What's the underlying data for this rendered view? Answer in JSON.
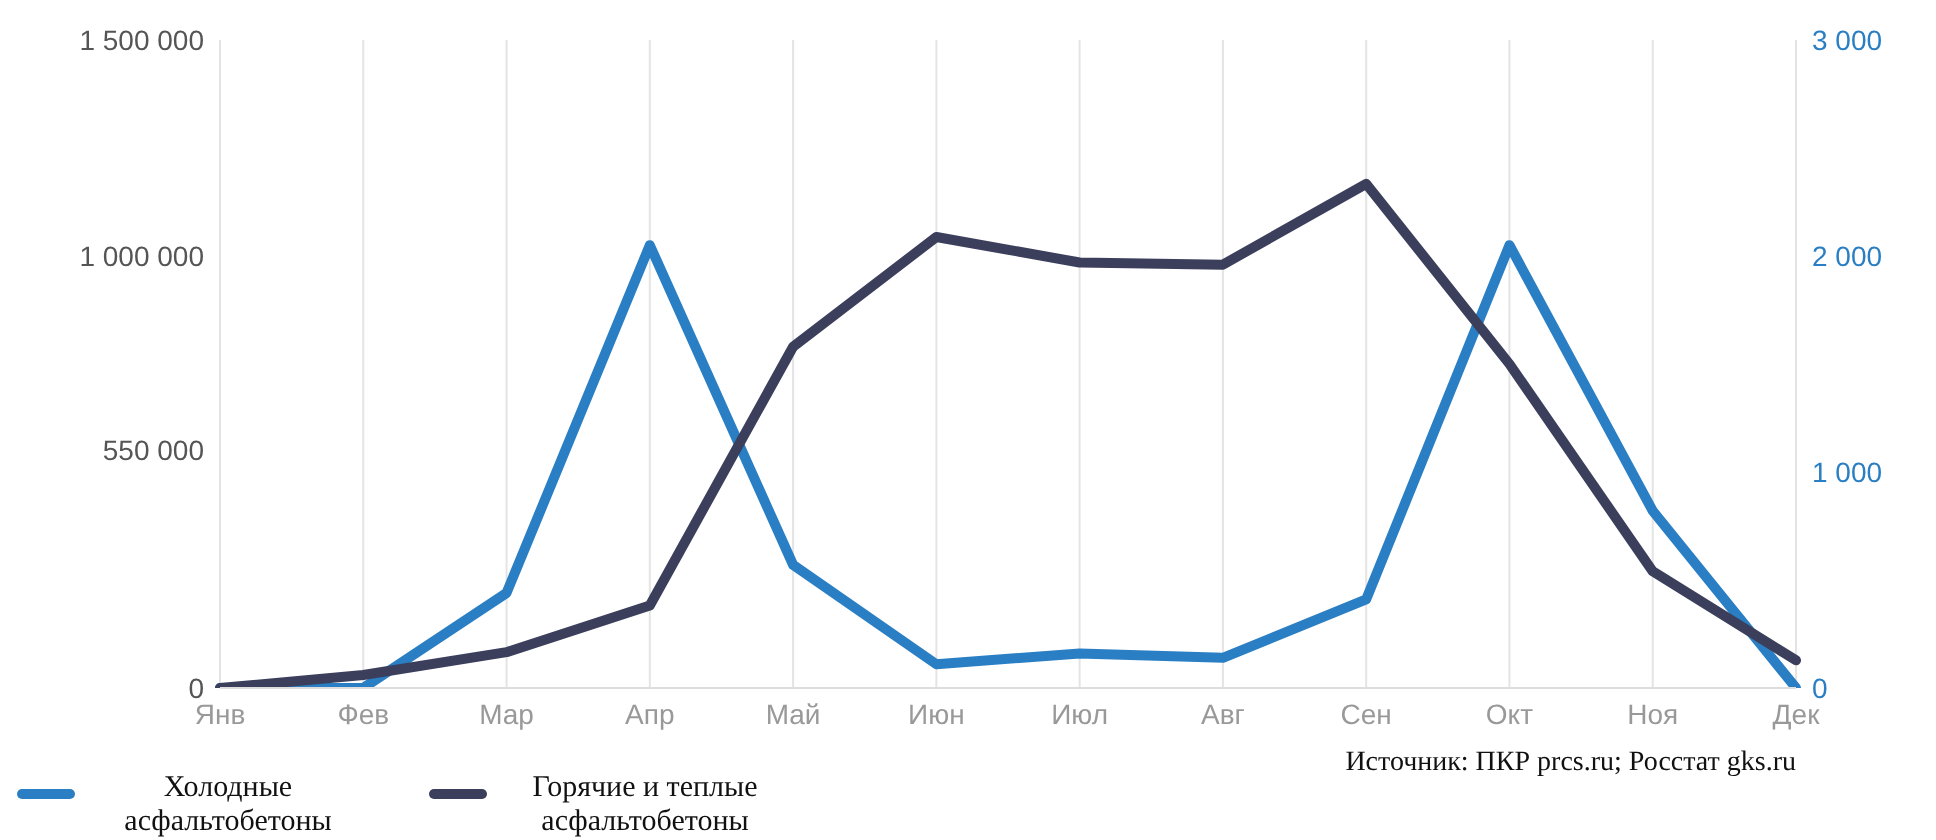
{
  "chart_data": {
    "type": "line",
    "categories": [
      "Янв",
      "Фев",
      "Мар",
      "Апр",
      "Май",
      "Июн",
      "Июл",
      "Авг",
      "Сен",
      "Окт",
      "Ноя",
      "Дек"
    ],
    "series": [
      {
        "name": "Холодные асфальтобетоны",
        "color": "#2a7fc4",
        "axis": "y2",
        "values": [
          0,
          0,
          440,
          2050,
          570,
          110,
          160,
          140,
          410,
          2050,
          820,
          0
        ]
      },
      {
        "name": "Горячие и теплые асфальтобетоны",
        "color": "#3b3f5c",
        "axis": "y",
        "values": [
          0,
          30000,
          83000,
          191000,
          790000,
          1044000,
          985000,
          980000,
          1167000,
          750000,
          270000,
          64000
        ]
      }
    ],
    "ylim": [
      0,
      1500000
    ],
    "yticks": [
      0,
      {
        "value": 550000,
        "label": "550 000"
      },
      {
        "value": 1000000,
        "label": "1 000 000"
      },
      {
        "value": 1500000,
        "label": "1 500 000"
      }
    ],
    "y2lim": [
      0,
      3000
    ],
    "y2ticks": [
      0,
      {
        "value": 1000,
        "label": "1 000"
      },
      {
        "value": 2000,
        "label": "2 000"
      },
      {
        "value": 3000,
        "label": "3 000"
      }
    ],
    "grid": "x",
    "legend": "bottom left",
    "marker": "none",
    "line_style": "solid",
    "annotations": [
      "Источник: ПКР prcs.ru; Росстат gks.ru"
    ]
  }
}
